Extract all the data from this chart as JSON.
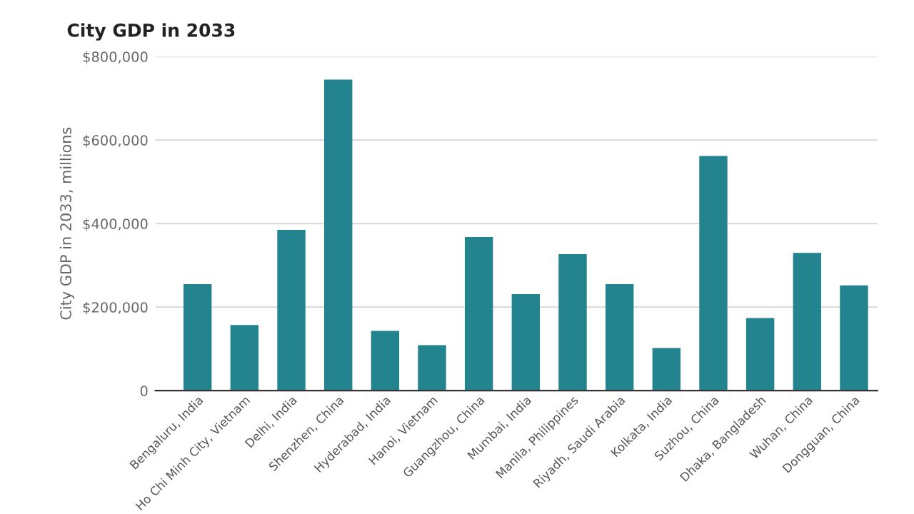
{
  "chart_data": {
    "type": "bar",
    "title": "City GDP in 2033",
    "ylabel": "City GDP in 2033, millions",
    "categories": [
      "Bengaluru, India",
      "Ho Chi Minh City, Vietnam",
      "Delhi, India",
      "Shenzhen, China",
      "Hyderabad, India",
      "Hanoi, Vietnam",
      "Guangzhou, China",
      "Mumbai, India",
      "Manila, Philippines",
      "Riyadh, Saudi Arabia",
      "Kolkata, India",
      "Suzhou, China",
      "Dhaka, Bangladesh",
      "Wuhan, China",
      "Dongguan, China"
    ],
    "values": [
      255000,
      157000,
      385000,
      745000,
      143000,
      109000,
      368000,
      231000,
      327000,
      255000,
      102000,
      562000,
      174000,
      330000,
      252000
    ],
    "color": "#23838f",
    "ylim": [
      0,
      800000
    ],
    "yticks": [
      0,
      {
        "value": 200000,
        "label": "$200,000"
      },
      {
        "value": 400000,
        "label": "$400,000"
      },
      {
        "value": 600000,
        "label": "$600,000"
      },
      {
        "value": 800000,
        "label": "$800,000"
      }
    ],
    "grid": "y"
  }
}
